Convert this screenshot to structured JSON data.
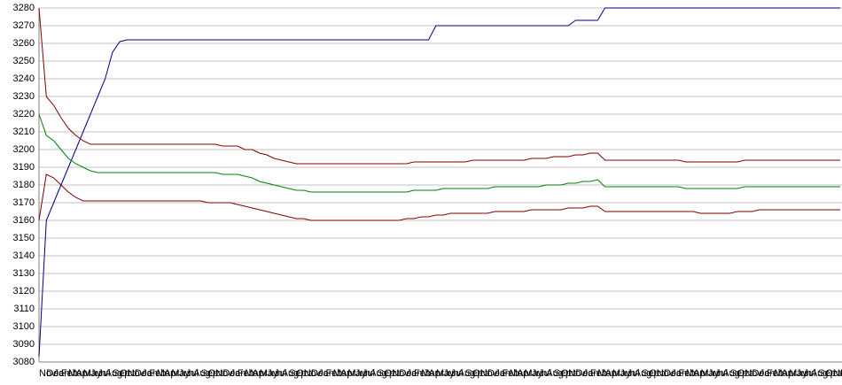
{
  "chart_data": {
    "type": "line",
    "categories": [
      "Nov",
      "Dec",
      "Jan",
      "Feb",
      "Mar",
      "Apr",
      "May",
      "Jun",
      "Jul",
      "Aug",
      "Sep",
      "Oct",
      "Nov",
      "Dec",
      "Jan",
      "Feb",
      "Mar",
      "Apr",
      "May",
      "Jun",
      "Jul",
      "Aug",
      "Sep",
      "Oct",
      "Nov",
      "Dec",
      "Jan",
      "Feb",
      "Mar",
      "Apr",
      "May",
      "Jun",
      "Jul",
      "Aug",
      "Sep",
      "Oct",
      "Nov",
      "Dec",
      "Jan",
      "Feb",
      "Mar",
      "Apr",
      "May",
      "Jun",
      "Jul",
      "Aug",
      "Sep",
      "Oct",
      "Nov",
      "Dec",
      "Jan",
      "Feb",
      "Mar",
      "Apr",
      "May",
      "Jun",
      "Jul",
      "Aug",
      "Sep",
      "Oct",
      "Nov",
      "Dec",
      "Jan",
      "Feb",
      "Mar",
      "Apr",
      "May",
      "Jun",
      "Jul",
      "Aug",
      "Sep",
      "Oct",
      "Nov",
      "Dec",
      "Jan",
      "Feb",
      "Mar",
      "Apr",
      "May",
      "Jun",
      "Jul",
      "Aug",
      "Sep",
      "Oct",
      "Nov",
      "Dec",
      "Jan",
      "Feb",
      "Mar",
      "Apr",
      "May",
      "Jun",
      "Jul",
      "Aug",
      "Sep",
      "Oct",
      "Nov",
      "Dec",
      "Jan",
      "Feb",
      "Mar",
      "Apr",
      "May",
      "Jun",
      "Jul",
      "Aug",
      "Sep",
      "Oct",
      "Nov",
      "Dec"
    ],
    "series": [
      {
        "color": "#000080",
        "values": [
          3083,
          3160,
          3170,
          3180,
          3190,
          3200,
          3210,
          3220,
          3230,
          3240,
          3255,
          3261,
          3262,
          3262,
          3262,
          3262,
          3262,
          3262,
          3262,
          3262,
          3262,
          3262,
          3262,
          3262,
          3262,
          3262,
          3262,
          3262,
          3262,
          3262,
          3262,
          3262,
          3262,
          3262,
          3262,
          3262,
          3262,
          3262,
          3262,
          3262,
          3262,
          3262,
          3262,
          3262,
          3262,
          3262,
          3262,
          3262,
          3262,
          3262,
          3262,
          3262,
          3262,
          3262,
          3270,
          3270,
          3270,
          3270,
          3270,
          3270,
          3270,
          3270,
          3270,
          3270,
          3270,
          3270,
          3270,
          3270,
          3270,
          3270,
          3270,
          3270,
          3270,
          3273,
          3273,
          3273,
          3273,
          3280,
          3280,
          3280,
          3280,
          3280,
          3280,
          3280,
          3280,
          3280,
          3280,
          3280,
          3280,
          3280,
          3280,
          3280,
          3280,
          3280,
          3280,
          3280,
          3280,
          3280,
          3280,
          3280,
          3280,
          3280,
          3280,
          3280,
          3280,
          3280,
          3280,
          3280,
          3280,
          3280
        ]
      },
      {
        "color": "#800000",
        "values": [
          3280,
          3230,
          3225,
          3218,
          3212,
          3208,
          3205,
          3203,
          3203,
          3203,
          3203,
          3203,
          3203,
          3203,
          3203,
          3203,
          3203,
          3203,
          3203,
          3203,
          3203,
          3203,
          3203,
          3203,
          3203,
          3202,
          3202,
          3202,
          3200,
          3200,
          3198,
          3197,
          3195,
          3194,
          3193,
          3192,
          3192,
          3192,
          3192,
          3192,
          3192,
          3192,
          3192,
          3192,
          3192,
          3192,
          3192,
          3192,
          3192,
          3192,
          3192,
          3193,
          3193,
          3193,
          3193,
          3193,
          3193,
          3193,
          3193,
          3194,
          3194,
          3194,
          3194,
          3194,
          3194,
          3194,
          3194,
          3195,
          3195,
          3195,
          3196,
          3196,
          3196,
          3197,
          3197,
          3198,
          3198,
          3194,
          3194,
          3194,
          3194,
          3194,
          3194,
          3194,
          3194,
          3194,
          3194,
          3194,
          3193,
          3193,
          3193,
          3193,
          3193,
          3193,
          3193,
          3193,
          3194,
          3194,
          3194,
          3194,
          3194,
          3194,
          3194,
          3194,
          3194,
          3194,
          3194,
          3194,
          3194,
          3194
        ]
      },
      {
        "color": "#008000",
        "values": [
          3220,
          3208,
          3205,
          3200,
          3195,
          3192,
          3190,
          3188,
          3187,
          3187,
          3187,
          3187,
          3187,
          3187,
          3187,
          3187,
          3187,
          3187,
          3187,
          3187,
          3187,
          3187,
          3187,
          3187,
          3187,
          3186,
          3186,
          3186,
          3185,
          3184,
          3182,
          3181,
          3180,
          3179,
          3178,
          3177,
          3177,
          3176,
          3176,
          3176,
          3176,
          3176,
          3176,
          3176,
          3176,
          3176,
          3176,
          3176,
          3176,
          3176,
          3176,
          3177,
          3177,
          3177,
          3177,
          3178,
          3178,
          3178,
          3178,
          3178,
          3178,
          3178,
          3179,
          3179,
          3179,
          3179,
          3179,
          3179,
          3179,
          3180,
          3180,
          3180,
          3181,
          3181,
          3182,
          3182,
          3183,
          3179,
          3179,
          3179,
          3179,
          3179,
          3179,
          3179,
          3179,
          3179,
          3179,
          3179,
          3178,
          3178,
          3178,
          3178,
          3178,
          3178,
          3178,
          3178,
          3179,
          3179,
          3179,
          3179,
          3179,
          3179,
          3179,
          3179,
          3179,
          3179,
          3179,
          3179,
          3179,
          3179
        ]
      },
      {
        "color": "#800000",
        "values": [
          3160,
          3186,
          3184,
          3180,
          3176,
          3173,
          3171,
          3171,
          3171,
          3171,
          3171,
          3171,
          3171,
          3171,
          3171,
          3171,
          3171,
          3171,
          3171,
          3171,
          3171,
          3171,
          3171,
          3170,
          3170,
          3170,
          3170,
          3169,
          3168,
          3167,
          3166,
          3165,
          3164,
          3163,
          3162,
          3161,
          3161,
          3160,
          3160,
          3160,
          3160,
          3160,
          3160,
          3160,
          3160,
          3160,
          3160,
          3160,
          3160,
          3160,
          3161,
          3161,
          3162,
          3162,
          3163,
          3163,
          3164,
          3164,
          3164,
          3164,
          3164,
          3164,
          3165,
          3165,
          3165,
          3165,
          3165,
          3166,
          3166,
          3166,
          3166,
          3166,
          3167,
          3167,
          3167,
          3168,
          3168,
          3165,
          3165,
          3165,
          3165,
          3165,
          3165,
          3165,
          3165,
          3165,
          3165,
          3165,
          3165,
          3165,
          3164,
          3164,
          3164,
          3164,
          3164,
          3165,
          3165,
          3165,
          3166,
          3166,
          3166,
          3166,
          3166,
          3166,
          3166,
          3166,
          3166,
          3166,
          3166,
          3166
        ]
      }
    ],
    "ylim": [
      3080,
      3280
    ],
    "yticks": [
      3080,
      3090,
      3100,
      3110,
      3120,
      3130,
      3140,
      3150,
      3160,
      3170,
      3180,
      3190,
      3200,
      3210,
      3220,
      3230,
      3240,
      3250,
      3260,
      3270,
      3280
    ],
    "grid": true
  }
}
